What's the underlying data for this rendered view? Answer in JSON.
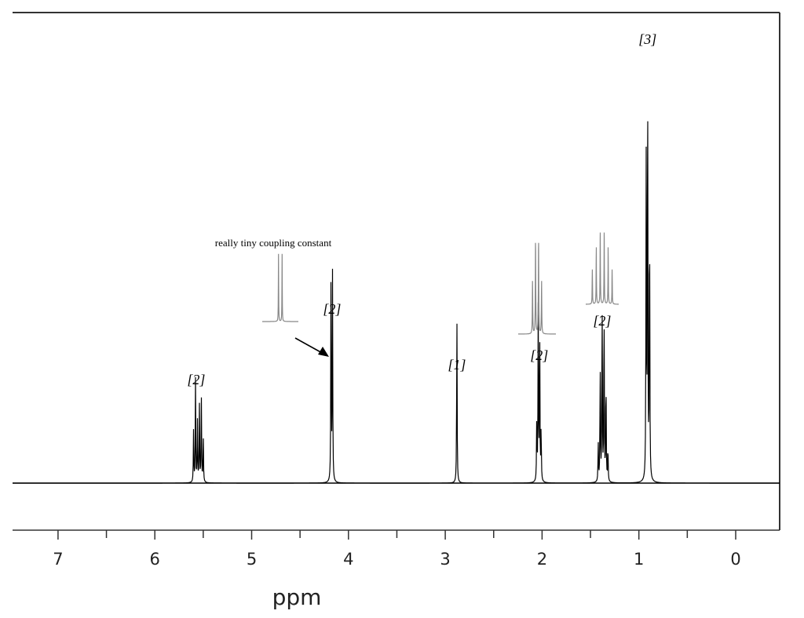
{
  "chart_data": {
    "type": "line",
    "title": "",
    "xlabel": "ppm",
    "ylabel": "",
    "x_axis": {
      "reversed": true,
      "min": -0.45,
      "max": 7.5,
      "major_ticks": [
        7,
        6,
        5,
        4,
        3,
        2,
        1,
        0
      ],
      "minor_step": 0.5
    },
    "grid": false,
    "peaks": [
      {
        "name": "vinyl-multiplet",
        "center": 5.54,
        "integration_label": "[2]",
        "lines": [
          {
            "ppm": 5.6,
            "h": 0.46
          },
          {
            "ppm": 5.58,
            "h": 0.92
          },
          {
            "ppm": 5.56,
            "h": 0.55
          },
          {
            "ppm": 5.54,
            "h": 0.72
          },
          {
            "ppm": 5.52,
            "h": 0.82
          },
          {
            "ppm": 5.5,
            "h": 0.45
          }
        ]
      },
      {
        "name": "doublet-4.17",
        "center": 4.17,
        "integration_label": "[2]",
        "lines": [
          {
            "ppm": 4.18,
            "h": 1.9
          },
          {
            "ppm": 4.165,
            "h": 1.88
          }
        ]
      },
      {
        "name": "singlet-2.88",
        "center": 2.88,
        "integration_label": "[1]",
        "lines": [
          {
            "ppm": 2.88,
            "h": 1.55
          }
        ]
      },
      {
        "name": "quartet-2.03",
        "center": 2.03,
        "integration_label": "[2]",
        "lines": [
          {
            "ppm": 2.055,
            "h": 0.55
          },
          {
            "ppm": 2.04,
            "h": 1.55
          },
          {
            "ppm": 2.025,
            "h": 1.52
          },
          {
            "ppm": 2.01,
            "h": 0.5
          }
        ]
      },
      {
        "name": "sextet-1.38",
        "center": 1.38,
        "integration_label": "[2]",
        "lines": [
          {
            "ppm": 1.42,
            "h": 0.35
          },
          {
            "ppm": 1.4,
            "h": 1.05
          },
          {
            "ppm": 1.38,
            "h": 1.72
          },
          {
            "ppm": 1.36,
            "h": 1.7
          },
          {
            "ppm": 1.34,
            "h": 1.02
          },
          {
            "ppm": 1.32,
            "h": 0.34
          }
        ]
      },
      {
        "name": "triplet-0.91",
        "center": 0.91,
        "integration_label": "[3]",
        "lines": [
          {
            "ppm": 0.925,
            "h": 2.9
          },
          {
            "ppm": 0.91,
            "h": 4.15
          },
          {
            "ppm": 0.89,
            "h": 2.75
          }
        ]
      }
    ],
    "integration_labels": [
      "[2]",
      "[2]",
      "[1]",
      "[2]",
      "[2]",
      "[3]"
    ],
    "annotations": [
      {
        "text": "really tiny coupling constant",
        "points_to_ppm": 4.17
      }
    ],
    "insets": [
      {
        "name": "doublet-inset",
        "near_peak": 4.17,
        "relative_lines": [
          0.45,
          0.55
        ],
        "relative_heights": [
          1,
          1
        ]
      },
      {
        "name": "quartet-inset",
        "near_peak": 2.03,
        "relative_lines": [
          0.38,
          0.46,
          0.54,
          0.62
        ],
        "relative_heights": [
          0.55,
          1,
          1,
          0.55
        ]
      },
      {
        "name": "sextet-inset",
        "near_peak": 1.38,
        "relative_lines": [
          0.2,
          0.32,
          0.44,
          0.56,
          0.68,
          0.8
        ],
        "relative_heights": [
          0.45,
          0.75,
          1,
          1,
          0.75,
          0.45
        ]
      }
    ]
  }
}
